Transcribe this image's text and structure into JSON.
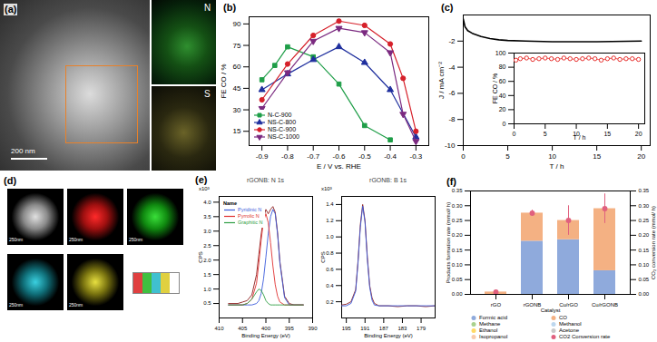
{
  "images": [
    {
      "panel": "(a)",
      "scale_label": "200 nm",
      "maps": [
        "N",
        "S"
      ]
    },
    {
      "panel": "(d)",
      "scale_labels": [
        "250nm",
        "250nm",
        "250nm",
        "250nm",
        "250nm"
      ]
    }
  ],
  "chart_data": [
    {
      "panel": "(b)",
      "type": "line",
      "x_label": "E / V vs. RHE",
      "y_label": "FE CO / %",
      "xlim": [
        -0.95,
        -0.25
      ],
      "xticks": [
        -0.9,
        -0.8,
        -0.7,
        -0.6,
        -0.5,
        -0.4,
        -0.3
      ],
      "ylim": [
        5,
        95
      ],
      "yticks": [
        15,
        30,
        45,
        60,
        75,
        90
      ],
      "legend": "lower left",
      "series": [
        {
          "name": "N-C-900",
          "color": "#1f9e48",
          "marker": "square",
          "x": [
            -0.9,
            -0.85,
            -0.8,
            -0.7,
            -0.6,
            -0.5,
            -0.4
          ],
          "values": [
            51,
            61,
            74,
            67,
            48,
            19,
            9
          ]
        },
        {
          "name": "NS-C-800",
          "color": "#1f2f9e",
          "marker": "triangle-up",
          "x": [
            -0.9,
            -0.8,
            -0.7,
            -0.6,
            -0.5,
            -0.4,
            -0.3
          ],
          "values": [
            44,
            55,
            65,
            74,
            63,
            44,
            11
          ]
        },
        {
          "name": "NS-C-900",
          "color": "#d6202a",
          "marker": "circle",
          "x": [
            -0.9,
            -0.8,
            -0.7,
            -0.6,
            -0.5,
            -0.4,
            -0.35,
            -0.3
          ],
          "values": [
            37,
            62,
            82,
            92,
            89,
            76,
            52,
            15
          ]
        },
        {
          "name": "NS-C-1000",
          "color": "#7b2a80",
          "marker": "triangle-down",
          "x": [
            -0.9,
            -0.8,
            -0.7,
            -0.6,
            -0.5,
            -0.4,
            -0.35,
            -0.3
          ],
          "values": [
            31,
            56,
            78,
            87,
            84,
            70,
            27,
            8
          ]
        }
      ]
    },
    {
      "panel": "(c)",
      "type": "line",
      "x_label": "T / h",
      "y_label": "J / mA cm⁻²",
      "xlim": [
        0,
        21
      ],
      "xticks": [
        0,
        5,
        10,
        15,
        20
      ],
      "ylim": [
        -10,
        0
      ],
      "yticks": [
        -10,
        -8,
        -6,
        -4,
        -2
      ],
      "series": [
        {
          "color": "#000000",
          "x": [
            0,
            0.2,
            0.5,
            1,
            2,
            3,
            4,
            5,
            7,
            10,
            15,
            20
          ],
          "values": [
            -0.3,
            -0.9,
            -1.2,
            -1.4,
            -1.65,
            -1.8,
            -1.9,
            -1.95,
            -2.0,
            -2.05,
            -2.05,
            -2.0
          ]
        }
      ]
    },
    {
      "type": "line",
      "x_label": "T / h",
      "y_label": "FE CO / %",
      "xlim": [
        0,
        21
      ],
      "xticks": [
        0,
        5,
        10,
        15,
        20
      ],
      "ylim": [
        0,
        100
      ],
      "yticks": [
        0,
        20,
        40,
        60,
        80,
        100
      ],
      "series": [
        {
          "color": "#e8312f",
          "marker": "open circle",
          "x": [
            0.3,
            1,
            2,
            3,
            4,
            5,
            6,
            7,
            8,
            9,
            10,
            11,
            12,
            13,
            14,
            15,
            16,
            17,
            18,
            19,
            20
          ],
          "values": [
            90,
            92,
            93,
            91,
            92,
            93,
            92,
            91,
            93,
            92,
            91,
            92,
            93,
            92,
            90,
            92,
            93,
            91,
            92,
            92,
            91
          ]
        }
      ]
    },
    {
      "panel": "(e)",
      "type": "line",
      "title": "rGONB: N 1s",
      "x_label": "Binding Energy (eV)",
      "y_label": "CPS",
      "annotations": [
        "x10³"
      ],
      "legend_title": "Name",
      "legend": "upper left",
      "xlim": [
        410,
        390
      ],
      "xticks": [
        410,
        405,
        400,
        395,
        390
      ],
      "ylim": [
        0,
        4.2
      ],
      "yticks": [
        0.5,
        {
          "value": 1,
          "label": "1.0"
        },
        1.5,
        {
          "value": 2,
          "label": "2.0"
        },
        2.5,
        {
          "value": 3,
          "label": "3.0"
        },
        3.5,
        {
          "value": 4,
          "label": "4.0"
        }
      ],
      "series": [
        {
          "color": "#8b1c1c",
          "x": [
            408,
            406,
            405,
            404,
            403,
            402,
            401.5,
            401,
            400.5,
            400,
            399.5,
            399,
            398.5,
            398,
            397.5,
            397,
            396,
            395,
            394,
            392
          ],
          "values": [
            0.5,
            0.5,
            0.55,
            0.6,
            0.8,
            1.5,
            2.2,
            2.9,
            3.45,
            3.75,
            3.6,
            3.75,
            3.85,
            3.65,
            2.95,
            1.95,
            0.75,
            0.5,
            0.45,
            0.45
          ]
        },
        {
          "name": "Pyridinic N",
          "color": "#3b5bdb",
          "x": [
            408,
            406,
            405,
            404,
            403,
            402,
            401.5,
            401,
            400.5,
            400,
            399.5,
            399,
            398.5,
            398,
            397.5,
            397,
            396,
            395,
            394,
            392
          ],
          "values": [
            0.45,
            0.45,
            0.45,
            0.45,
            0.45,
            0.5,
            0.6,
            0.85,
            1.35,
            2.1,
            2.9,
            3.5,
            3.75,
            3.6,
            2.9,
            1.9,
            0.7,
            0.45,
            0.45,
            0.45
          ]
        },
        {
          "name": "Pyrrolic N",
          "color": "#e03131",
          "x": [
            408,
            406,
            405,
            404,
            403,
            402,
            401.5,
            401,
            400.5,
            400,
            399.5,
            399,
            398.5,
            398,
            397.5,
            397,
            396,
            395,
            394,
            392
          ],
          "values": [
            0.45,
            0.45,
            0.45,
            0.5,
            0.65,
            1.2,
            1.9,
            2.7,
            3.35,
            3.6,
            3.3,
            2.6,
            1.8,
            1.15,
            0.75,
            0.55,
            0.45,
            0.45,
            0.45,
            0.45
          ]
        },
        {
          "name": "Graphitic N",
          "color": "#2f9e44",
          "x": [
            408,
            406,
            405,
            404,
            403,
            402,
            401.5,
            401,
            400.5,
            400,
            399.5,
            399,
            398.5,
            398,
            397.5,
            397,
            396,
            395,
            394,
            392
          ],
          "values": [
            0.45,
            0.45,
            0.45,
            0.5,
            0.65,
            0.9,
            1.0,
            0.95,
            0.8,
            0.6,
            0.5,
            0.45,
            0.45,
            0.45,
            0.45,
            0.45,
            0.45,
            0.45,
            0.45,
            0.45
          ]
        }
      ]
    },
    {
      "type": "line",
      "title": "rGONB: B 1s",
      "x_label": "Binding Energy (eV)",
      "y_label": "CPS",
      "annotations": [
        "x10³"
      ],
      "xlim": [
        196,
        176
      ],
      "xticks": [
        195,
        191,
        187,
        183,
        179
      ],
      "ylim": [
        0,
        1.5
      ],
      "yticks": [
        0.2,
        0.4,
        0.6,
        0.8,
        {
          "value": 1,
          "label": "1.0"
        },
        1.2,
        1.4
      ],
      "series": [
        {
          "color": "#8b1c1c",
          "x": [
            196,
            195,
            194,
            193,
            192.5,
            192,
            191.5,
            191,
            190.5,
            190,
            189.5,
            189,
            188,
            186,
            184,
            182,
            180,
            178,
            176
          ],
          "values": [
            0.16,
            0.17,
            0.2,
            0.35,
            0.7,
            1.15,
            1.4,
            1.2,
            0.75,
            0.4,
            0.25,
            0.18,
            0.15,
            0.15,
            0.14,
            0.15,
            0.15,
            0.14,
            0.15
          ]
        },
        {
          "color": "#3b5bdb",
          "x": [
            196,
            195,
            194,
            193,
            192.5,
            192,
            191.5,
            191,
            190.5,
            190,
            189.5,
            189,
            188,
            186,
            184,
            182,
            180,
            178,
            176
          ],
          "values": [
            0.15,
            0.15,
            0.18,
            0.33,
            0.68,
            1.12,
            1.38,
            1.18,
            0.72,
            0.38,
            0.22,
            0.16,
            0.15,
            0.15,
            0.15,
            0.15,
            0.15,
            0.15,
            0.15
          ]
        }
      ]
    },
    {
      "panel": "(f)",
      "type": "bar",
      "stacked": true,
      "x_label": "Catalyst",
      "y_label": "Products formation rate (mmol/ h)",
      "y2_label": "CO₂ conversion rate (mmol/ h)",
      "categories": [
        "rGO",
        "rGONB",
        "Cu/rGO",
        "Cu/rGONB"
      ],
      "ylim": [
        0,
        0.35
      ],
      "yticks": [
        {
          "value": 0,
          "label": "0.00"
        },
        0.05,
        {
          "value": 0.1,
          "label": "0.10"
        },
        0.15,
        {
          "value": 0.2,
          "label": "0.20"
        },
        0.25,
        {
          "value": 0.3,
          "label": "0.30"
        },
        0.35
      ],
      "y2lim": [
        0,
        0.35
      ],
      "y2ticks": [
        {
          "value": 0,
          "label": "0.00"
        },
        0.05,
        {
          "value": 0.1,
          "label": "0.10"
        },
        0.15,
        {
          "value": 0.2,
          "label": "0.20"
        },
        0.25,
        {
          "value": 0.3,
          "label": "0.30"
        },
        0.35
      ],
      "legend": "bottom",
      "series": [
        {
          "name": "Formic acid",
          "color": "#8faadc",
          "values": [
            0,
            0.18,
            0.185,
            0.08
          ]
        },
        {
          "name": "CO",
          "color": "#f4b183",
          "values": [
            0.008,
            0.095,
            0.065,
            0.21
          ]
        },
        {
          "name": "Methane",
          "color": "#a9d18e",
          "values": [
            0,
            0,
            0,
            0
          ]
        },
        {
          "name": "Methanol",
          "color": "#bdd7ee",
          "values": [
            0,
            0,
            0,
            0
          ]
        },
        {
          "name": "Ethanol",
          "color": "#ffd966",
          "values": [
            0,
            0,
            0,
            0
          ]
        },
        {
          "name": "Acetone",
          "color": "#c9c9c9",
          "values": [
            0,
            0,
            0,
            0
          ]
        },
        {
          "name": "Isopropanol",
          "color": "#f8cbad",
          "values": [
            0,
            0,
            0,
            0
          ]
        },
        {
          "name": "CO2 Conversion rate",
          "type": "scatter",
          "axis": "y2",
          "marker": "circle",
          "color": "#e0607e",
          "values": [
            0.008,
            0.275,
            0.25,
            0.29
          ],
          "errors": [
            0.003,
            0.01,
            0.05,
            0.05
          ]
        }
      ]
    }
  ]
}
